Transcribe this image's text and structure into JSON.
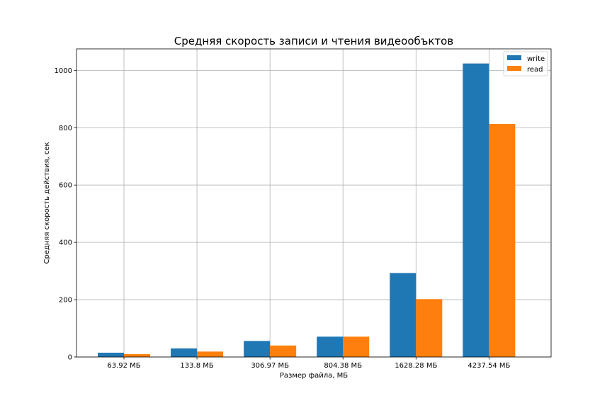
{
  "chart_data": {
    "type": "bar",
    "title": "Средняя скорость записи и чтения видеообъктов",
    "xlabel": "Размер файла, МБ",
    "ylabel": "Средняя скорость действия, сек",
    "categories": [
      "63.92 МБ",
      "133.8 МБ",
      "306.97 МБ",
      "804.38 МБ",
      "1628.28 МБ",
      "4237.54 МБ"
    ],
    "series": [
      {
        "name": "write",
        "color": "#1f77b4",
        "values": [
          15,
          30,
          56,
          71,
          293,
          1024
        ]
      },
      {
        "name": "read",
        "color": "#ff7f0e",
        "values": [
          10,
          19,
          40,
          71,
          202,
          813
        ]
      }
    ],
    "ylim": [
      0,
      1075
    ],
    "yticks": [
      0,
      200,
      400,
      600,
      800,
      1000
    ],
    "grid": true,
    "legend_position": "top-right"
  }
}
